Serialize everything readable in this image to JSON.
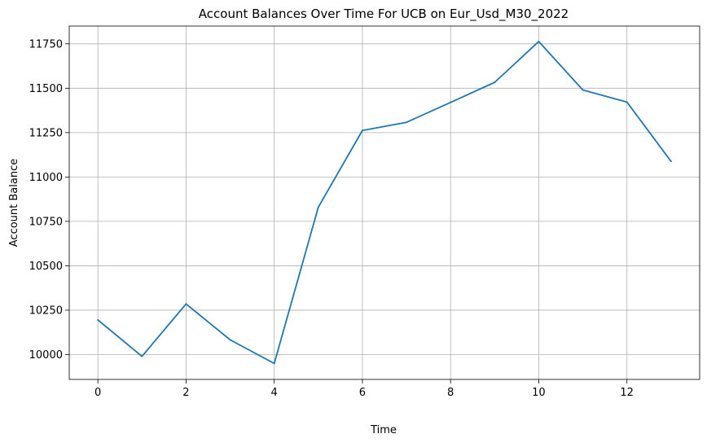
{
  "chart_data": {
    "type": "line",
    "title": "Account Balances Over Time For UCB on Eur_Usd_M30_2022",
    "xlabel": "Time",
    "ylabel": "Account Balance",
    "xlim": [
      -0.65,
      13.65
    ],
    "ylim": [
      9860,
      11850
    ],
    "xticks": [
      0,
      2,
      4,
      6,
      8,
      10,
      12
    ],
    "yticks": [
      10000,
      10250,
      10500,
      10750,
      11000,
      11250,
      11500,
      11750
    ],
    "grid": true,
    "series": [
      {
        "name": "Account Balance",
        "color": "#1f77b4",
        "x": [
          0,
          1,
          2,
          3,
          4,
          5,
          6,
          7,
          8,
          9,
          10,
          11,
          12,
          13
        ],
        "y": [
          10195,
          9990,
          10285,
          10083,
          9950,
          10830,
          11262,
          11308,
          11420,
          11533,
          11763,
          11490,
          11422,
          11088
        ]
      }
    ]
  }
}
